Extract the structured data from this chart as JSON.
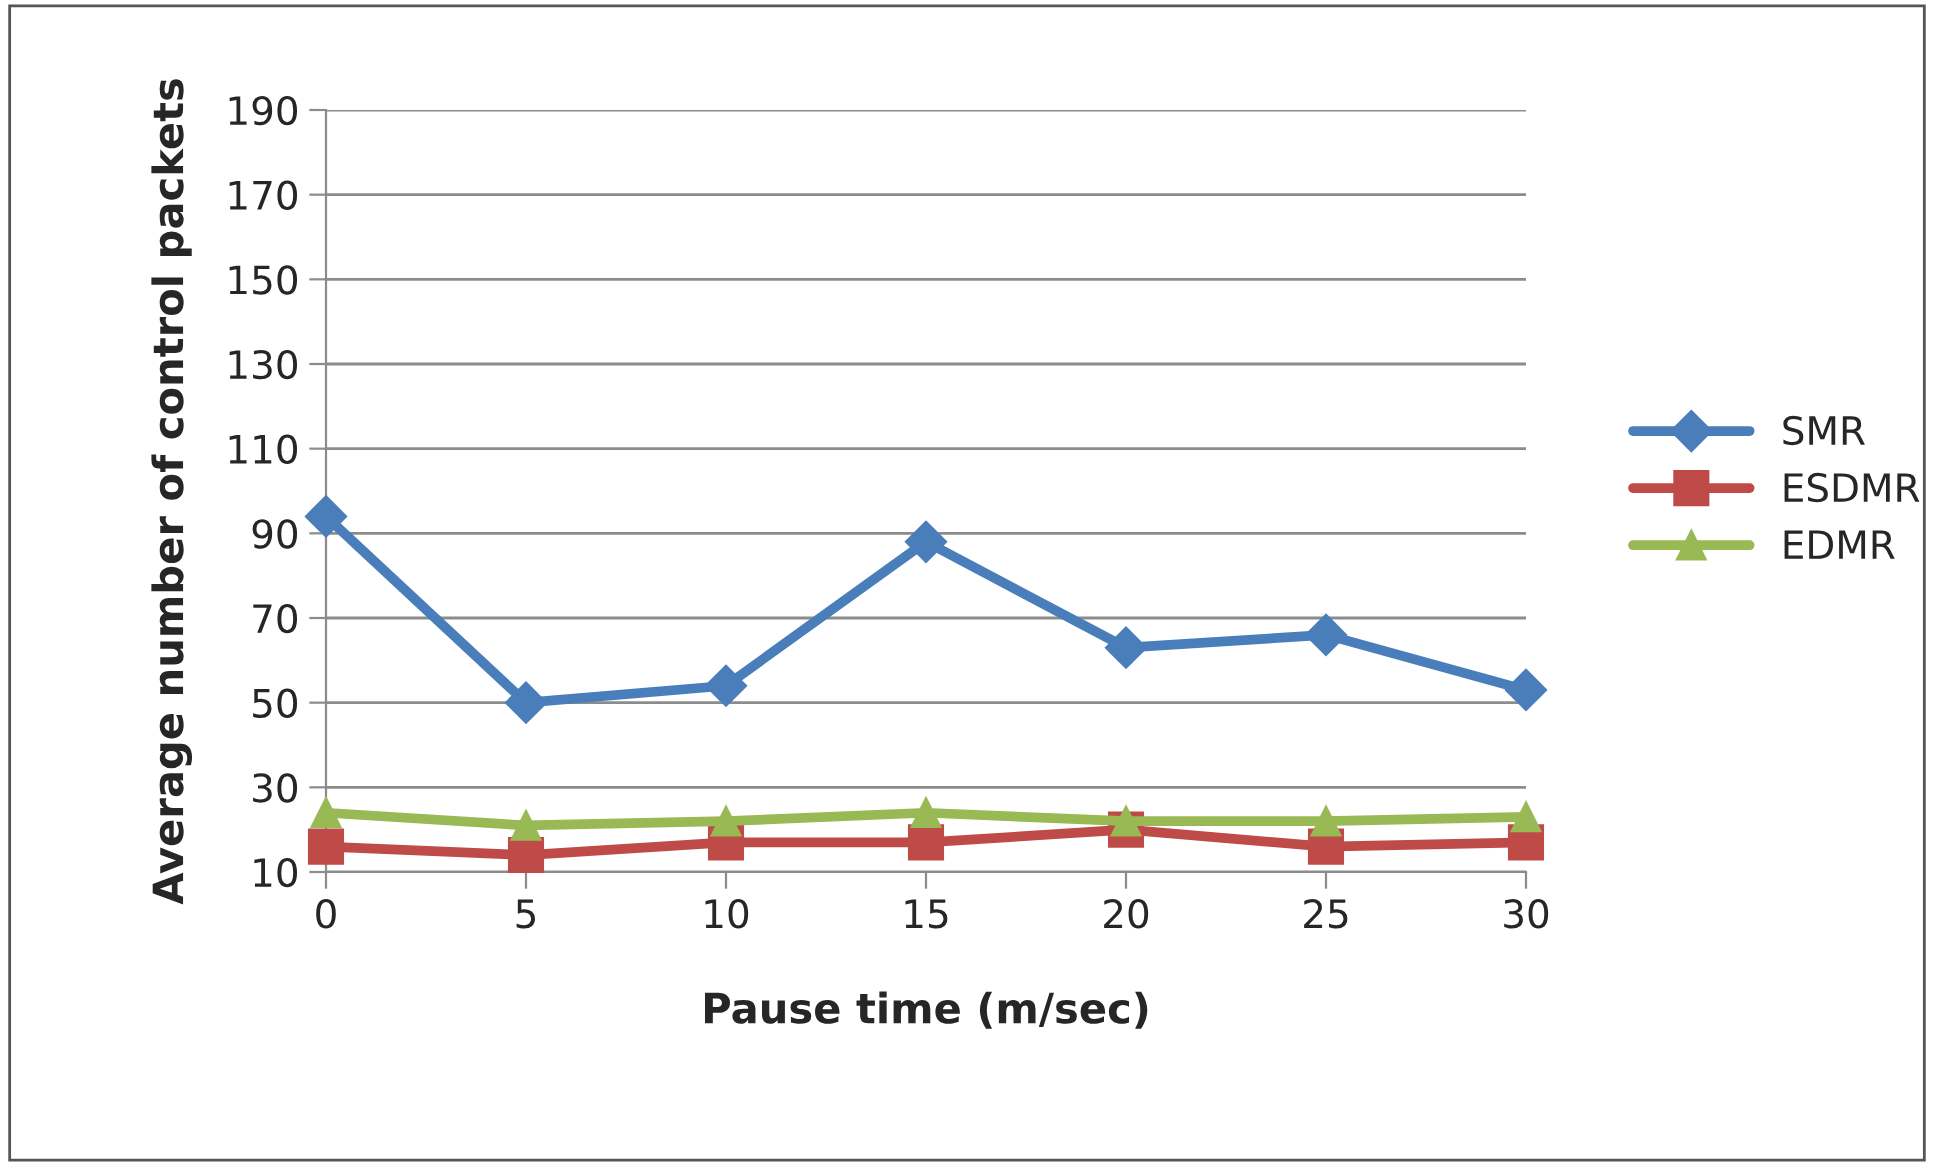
{
  "chart_data": {
    "type": "line",
    "xlabel": "Pause time (m/sec)",
    "ylabel": "Average number of control packets",
    "x": [
      0,
      5,
      10,
      15,
      20,
      25,
      30
    ],
    "series": [
      {
        "name": "SMR",
        "color": "#4a7ebb",
        "marker": "diamond",
        "values": [
          94,
          50,
          54,
          88,
          63,
          66,
          53
        ]
      },
      {
        "name": "ESDMR",
        "color": "#be4b48",
        "marker": "square",
        "values": [
          16,
          14,
          17,
          17,
          20,
          16,
          17
        ]
      },
      {
        "name": "EDMR",
        "color": "#98b954",
        "marker": "triangle",
        "values": [
          24,
          21,
          22,
          24,
          22,
          22,
          23
        ]
      }
    ],
    "xlim": [
      0,
      30
    ],
    "xticks": [
      0,
      5,
      10,
      15,
      20,
      25,
      30
    ],
    "ylim": [
      10,
      190
    ],
    "yticks": [
      10,
      30,
      50,
      70,
      90,
      110,
      130,
      150,
      170,
      190
    ],
    "grid": "y",
    "legend": "right"
  }
}
